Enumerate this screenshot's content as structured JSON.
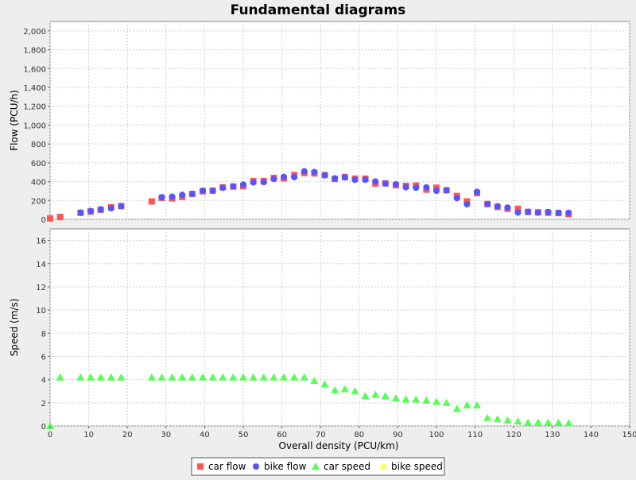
{
  "chart_data": {
    "type": "scatter",
    "title": "Fundamental diagrams",
    "xlabel": "Overall density (PCU/km)",
    "xlim": [
      0,
      150
    ],
    "x_ticks": [
      "0",
      "10",
      "20",
      "30",
      "40",
      "50",
      "60",
      "70",
      "80",
      "90",
      "100",
      "110",
      "120",
      "130",
      "140",
      "150"
    ],
    "grid": true,
    "legend_position": "bottom",
    "colors": {
      "car_flow": "#ff5555",
      "bike_flow": "#5555ff",
      "car_speed": "#55ff55",
      "bike_speed": "#ffff55"
    },
    "panels": [
      {
        "ylabel": "Flow (PCU/h)",
        "ylim": [
          0,
          2100
        ],
        "y_ticks": [
          "0",
          "200",
          "400",
          "600",
          "800",
          "1,000",
          "1,200",
          "1,400",
          "1,600",
          "1,800",
          "2,000"
        ],
        "series": [
          {
            "name": "car flow",
            "marker": "square",
            "color": "#ff5555",
            "points": [
              [
                0,
                10
              ],
              [
                2.6,
                25
              ],
              [
                7.9,
                68
              ],
              [
                10.5,
                82
              ],
              [
                13.1,
                102
              ],
              [
                15.8,
                128
              ],
              [
                18.4,
                140
              ],
              [
                26.3,
                190
              ],
              [
                28.9,
                228
              ],
              [
                31.6,
                222
              ],
              [
                34.2,
                238
              ],
              [
                36.8,
                270
              ],
              [
                39.5,
                298
              ],
              [
                42.1,
                304
              ],
              [
                44.7,
                340
              ],
              [
                47.4,
                348
              ],
              [
                50,
                352
              ],
              [
                52.6,
                405
              ],
              [
                55.3,
                405
              ],
              [
                57.9,
                440
              ],
              [
                60.5,
                435
              ],
              [
                63.2,
                470
              ],
              [
                65.8,
                492
              ],
              [
                68.4,
                488
              ],
              [
                71.1,
                470
              ],
              [
                73.7,
                428
              ],
              [
                76.3,
                448
              ],
              [
                78.9,
                432
              ],
              [
                81.6,
                432
              ],
              [
                84.2,
                380
              ],
              [
                86.8,
                382
              ],
              [
                89.5,
                362
              ],
              [
                92.1,
                355
              ],
              [
                94.7,
                358
              ],
              [
                97.4,
                315
              ],
              [
                100,
                335
              ],
              [
                102.6,
                308
              ],
              [
                105.3,
                248
              ],
              [
                107.9,
                190
              ],
              [
                110.5,
                278
              ],
              [
                113.2,
                162
              ],
              [
                115.8,
                132
              ],
              [
                118.4,
                112
              ],
              [
                121.1,
                112
              ],
              [
                123.7,
                78
              ],
              [
                126.3,
                74
              ],
              [
                128.9,
                70
              ],
              [
                131.6,
                66
              ],
              [
                134.2,
                55
              ]
            ]
          },
          {
            "name": "bike flow",
            "marker": "circle",
            "color": "#5555ff",
            "points": [
              [
                7.9,
                72
              ],
              [
                10.5,
                90
              ],
              [
                13.1,
                105
              ],
              [
                15.8,
                118
              ],
              [
                18.4,
                140
              ],
              [
                28.9,
                235
              ],
              [
                31.6,
                240
              ],
              [
                34.2,
                260
              ],
              [
                36.8,
                270
              ],
              [
                39.5,
                305
              ],
              [
                42.1,
                305
              ],
              [
                44.7,
                335
              ],
              [
                47.4,
                350
              ],
              [
                50,
                368
              ],
              [
                52.6,
                392
              ],
              [
                55.3,
                395
              ],
              [
                57.9,
                428
              ],
              [
                60.5,
                450
              ],
              [
                63.2,
                448
              ],
              [
                65.8,
                510
              ],
              [
                68.4,
                502
              ],
              [
                71.1,
                468
              ],
              [
                73.7,
                435
              ],
              [
                76.3,
                446
              ],
              [
                78.9,
                420
              ],
              [
                81.6,
                420
              ],
              [
                84.2,
                402
              ],
              [
                86.8,
                380
              ],
              [
                89.5,
                372
              ],
              [
                92.1,
                340
              ],
              [
                94.7,
                335
              ],
              [
                97.4,
                340
              ],
              [
                100,
                302
              ],
              [
                102.6,
                310
              ],
              [
                105.3,
                225
              ],
              [
                107.9,
                160
              ],
              [
                110.5,
                292
              ],
              [
                113.2,
                162
              ],
              [
                115.8,
                138
              ],
              [
                118.4,
                125
              ],
              [
                121.1,
                72
              ],
              [
                123.7,
                80
              ],
              [
                126.3,
                72
              ],
              [
                128.9,
                78
              ],
              [
                131.6,
                70
              ],
              [
                134.2,
                70
              ]
            ]
          }
        ]
      },
      {
        "ylabel": "Speed (m/s)",
        "ylim": [
          0,
          17
        ],
        "y_ticks": [
          "0",
          "2",
          "4",
          "6",
          "8",
          "10",
          "12",
          "14",
          "16"
        ],
        "series": [
          {
            "name": "car speed",
            "marker": "triangle",
            "color": "#55ff55",
            "points": [
              [
                0,
                0
              ],
              [
                2.6,
                4.2
              ],
              [
                7.9,
                4.2
              ],
              [
                10.5,
                4.2
              ],
              [
                13.1,
                4.2
              ],
              [
                15.8,
                4.2
              ],
              [
                18.4,
                4.2
              ],
              [
                26.3,
                4.2
              ],
              [
                28.9,
                4.2
              ],
              [
                31.6,
                4.2
              ],
              [
                34.2,
                4.2
              ],
              [
                36.8,
                4.2
              ],
              [
                39.5,
                4.2
              ],
              [
                42.1,
                4.2
              ],
              [
                44.7,
                4.2
              ],
              [
                47.4,
                4.2
              ],
              [
                50,
                4.2
              ],
              [
                52.6,
                4.2
              ],
              [
                55.3,
                4.2
              ],
              [
                57.9,
                4.2
              ],
              [
                60.5,
                4.2
              ],
              [
                63.2,
                4.2
              ],
              [
                65.8,
                4.2
              ],
              [
                68.4,
                3.9
              ],
              [
                71.1,
                3.6
              ],
              [
                73.7,
                3.1
              ],
              [
                76.3,
                3.2
              ],
              [
                78.9,
                3.0
              ],
              [
                81.6,
                2.6
              ],
              [
                84.2,
                2.7
              ],
              [
                86.8,
                2.6
              ],
              [
                89.5,
                2.4
              ],
              [
                92.1,
                2.3
              ],
              [
                94.7,
                2.3
              ],
              [
                97.4,
                2.2
              ],
              [
                100,
                2.1
              ],
              [
                102.6,
                2.0
              ],
              [
                105.3,
                1.5
              ],
              [
                107.9,
                1.8
              ],
              [
                110.5,
                1.8
              ],
              [
                113.2,
                0.7
              ],
              [
                115.8,
                0.6
              ],
              [
                118.4,
                0.5
              ],
              [
                121.1,
                0.4
              ],
              [
                123.7,
                0.3
              ],
              [
                126.3,
                0.3
              ],
              [
                128.9,
                0.3
              ],
              [
                131.6,
                0.3
              ],
              [
                134.2,
                0.25
              ]
            ]
          },
          {
            "name": "bike speed",
            "marker": "diamond",
            "color": "#ffff55",
            "points": []
          }
        ]
      }
    ]
  }
}
